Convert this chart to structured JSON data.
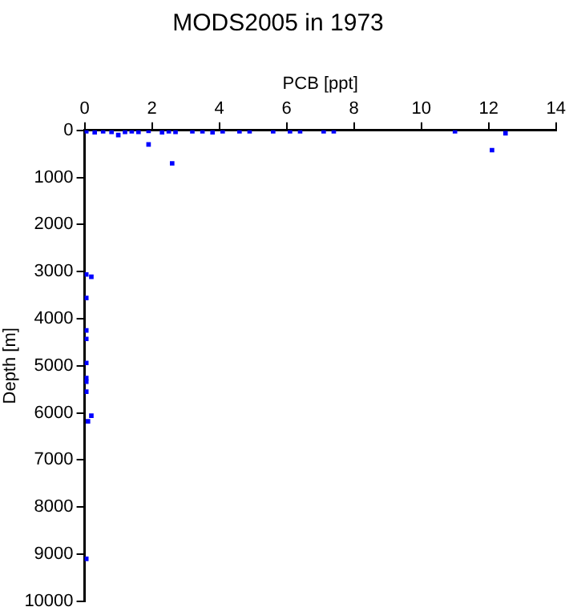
{
  "chart_data": {
    "type": "scatter",
    "title": "MODS2005 in 1973",
    "xlabel": "PCB [ppt]",
    "ylabel": "Depth [m]",
    "xlim": [
      0,
      14
    ],
    "xticks": [
      0,
      2,
      4,
      6,
      8,
      10,
      12,
      14
    ],
    "ylim": [
      10000,
      0
    ],
    "yticks": [
      0,
      1000,
      2000,
      3000,
      4000,
      5000,
      6000,
      7000,
      8000,
      9000,
      10000
    ],
    "grid": false,
    "marker": "square",
    "legend": false,
    "series": [
      {
        "color": "#0000ff",
        "x": [
          0.05,
          0.3,
          0.55,
          0.8,
          1.0,
          1.2,
          1.4,
          1.6,
          1.9,
          2.3,
          2.5,
          2.7,
          3.2,
          3.5,
          3.8,
          4.1,
          4.6,
          4.9,
          5.6,
          6.1,
          6.4,
          7.1,
          7.4,
          11,
          12.5,
          1.9,
          2.6,
          12.1,
          0.05,
          0.2,
          0.05,
          0.05,
          0.05,
          0.05,
          0.05,
          0.05,
          0.05,
          0.1,
          0.2,
          0.05
        ],
        "values": [
          20,
          40,
          20,
          30,
          100,
          30,
          20,
          30,
          10,
          40,
          20,
          30,
          20,
          20,
          40,
          20,
          20,
          20,
          20,
          20,
          20,
          20,
          20,
          20,
          60,
          300,
          700,
          420,
          3060,
          3110,
          3560,
          4250,
          4430,
          4940,
          5260,
          5340,
          5550,
          6180,
          6060,
          9100
        ]
      }
    ]
  }
}
